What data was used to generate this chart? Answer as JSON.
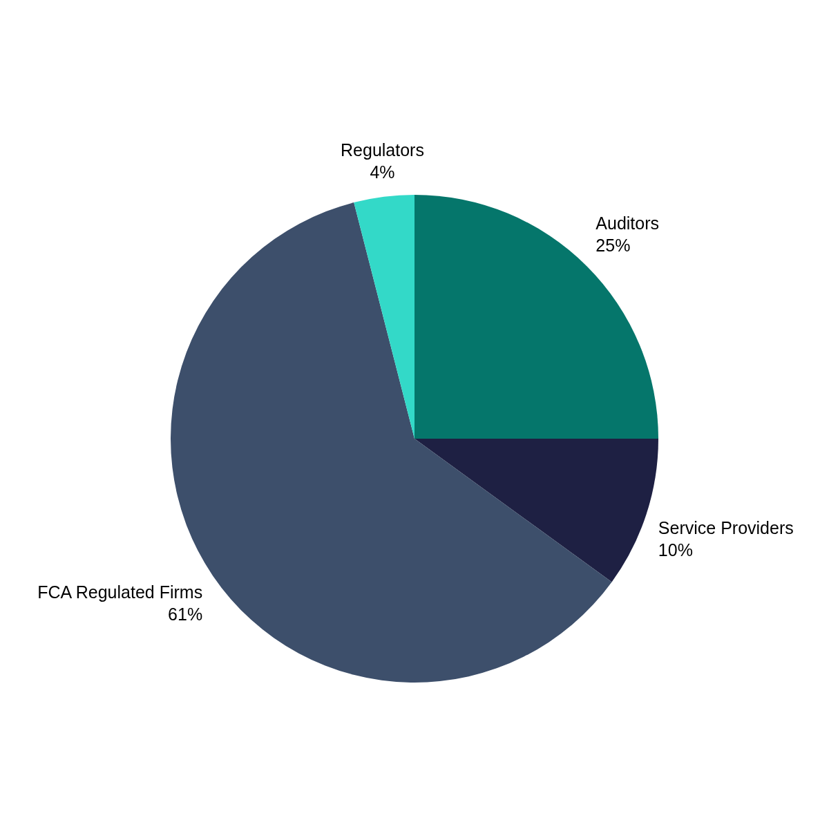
{
  "chart_data": {
    "type": "pie",
    "categories": [
      "Auditors",
      "Service Providers",
      "FCA Regulated Firms",
      "Regulators"
    ],
    "values": [
      25,
      10,
      61,
      4
    ],
    "value_labels": [
      "25%",
      "10%",
      "61%",
      "4%"
    ],
    "colors": [
      "#05766b",
      "#1e2043",
      "#3d4f6b",
      "#33d9c8"
    ],
    "legend": false
  }
}
